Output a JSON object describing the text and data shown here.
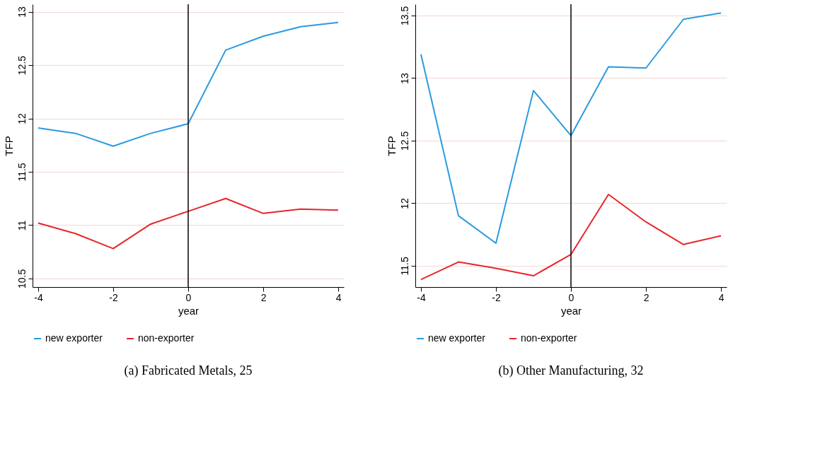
{
  "chart_data": [
    {
      "type": "line",
      "title": "(a) Fabricated Metals, 25",
      "xlabel": "year",
      "ylabel": "TFP",
      "x": [
        -4,
        -3,
        -2,
        -1,
        0,
        1,
        2,
        3,
        4
      ],
      "series": [
        {
          "name": "new exporter",
          "color": "#2a9be0",
          "values": [
            11.91,
            11.86,
            11.74,
            11.86,
            11.95,
            12.64,
            12.77,
            12.86,
            12.9
          ]
        },
        {
          "name": "non-exporter",
          "color": "#e8262a",
          "values": [
            11.02,
            10.92,
            10.78,
            11.01,
            11.13,
            11.25,
            11.11,
            11.15,
            11.14
          ]
        }
      ],
      "xlim": [
        -4.15,
        4.15
      ],
      "xticks": [
        -4,
        -2,
        0,
        2,
        4
      ],
      "ylim": [
        10.42,
        13.07
      ],
      "yticks": [
        10.5,
        11,
        11.5,
        12,
        12.5,
        13
      ],
      "ref_lines": [
        {
          "axis": "x",
          "value": 0,
          "color": "#000000"
        }
      ],
      "grid": "y",
      "legend": "bottom",
      "marker": "none",
      "line_style": "solid"
    },
    {
      "type": "line",
      "title": "(b) Other Manufacturing, 32",
      "xlabel": "year",
      "ylabel": "TFP",
      "x": [
        -4,
        -3,
        -2,
        -1,
        0,
        1,
        2,
        3,
        4
      ],
      "series": [
        {
          "name": "new exporter",
          "color": "#2a9be0",
          "values": [
            13.19,
            11.9,
            11.68,
            12.9,
            12.54,
            13.09,
            13.08,
            13.47,
            13.52
          ]
        },
        {
          "name": "non-exporter",
          "color": "#e8262a",
          "values": [
            11.39,
            11.53,
            11.48,
            11.42,
            11.59,
            12.07,
            11.85,
            11.67,
            11.74
          ]
        }
      ],
      "xlim": [
        -4.15,
        4.15
      ],
      "xticks": [
        -4,
        -2,
        0,
        2,
        4
      ],
      "ylim": [
        11.33,
        13.59
      ],
      "yticks": [
        11.5,
        12,
        12.5,
        13,
        13.5
      ],
      "ref_lines": [
        {
          "axis": "x",
          "value": 0,
          "color": "#000000"
        }
      ],
      "grid": "y",
      "legend": "bottom",
      "marker": "none",
      "line_style": "solid"
    }
  ]
}
